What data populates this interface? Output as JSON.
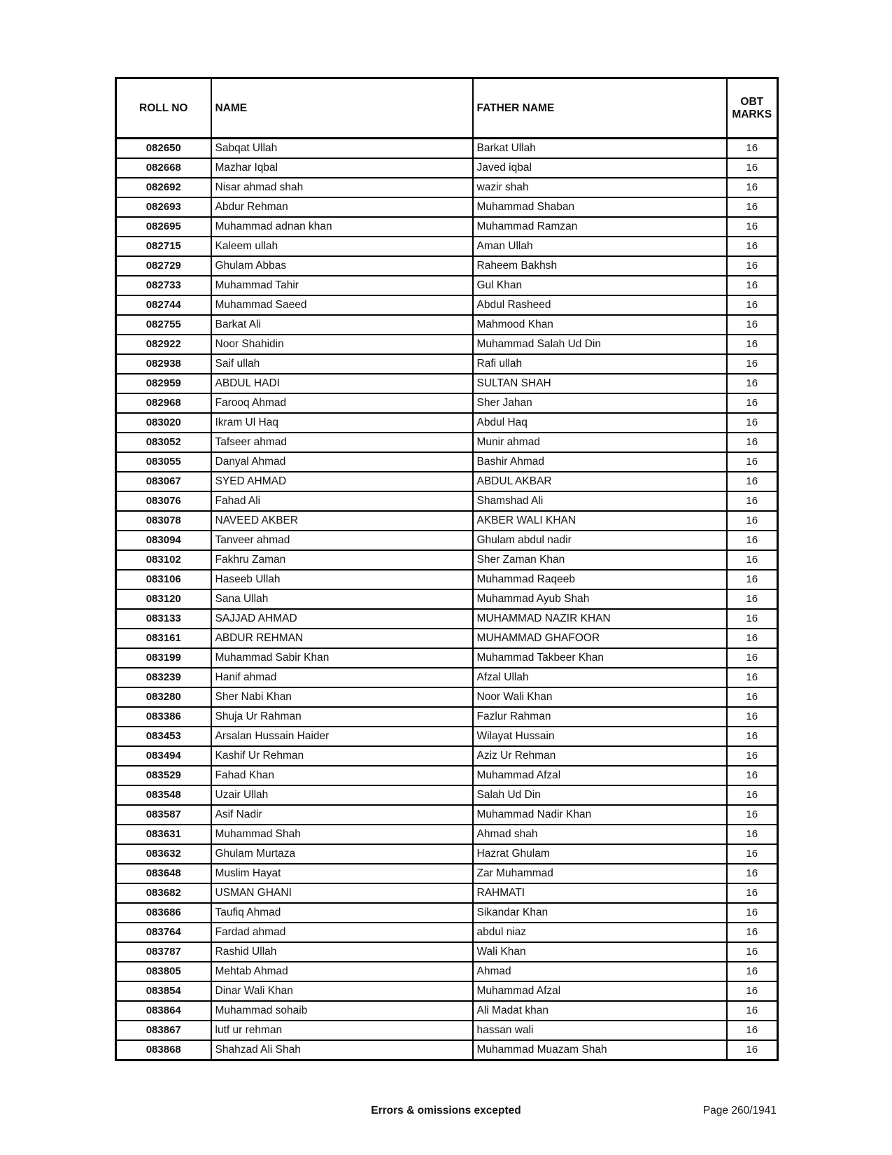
{
  "table": {
    "headers": {
      "roll": "ROLL NO",
      "name": "NAME",
      "father": "FATHER NAME",
      "marks": "OBT MARKS"
    },
    "rows": [
      {
        "roll": "082650",
        "name": "Sabqat Ullah",
        "father": "Barkat Ullah",
        "marks": "16"
      },
      {
        "roll": "082668",
        "name": "Mazhar Iqbal",
        "father": "Javed iqbal",
        "marks": "16"
      },
      {
        "roll": "082692",
        "name": "Nisar ahmad shah",
        "father": "wazir shah",
        "marks": "16"
      },
      {
        "roll": "082693",
        "name": "Abdur Rehman",
        "father": "Muhammad Shaban",
        "marks": "16"
      },
      {
        "roll": "082695",
        "name": "Muhammad adnan khan",
        "father": "Muhammad Ramzan",
        "marks": "16"
      },
      {
        "roll": "082715",
        "name": "Kaleem ullah",
        "father": "Aman Ullah",
        "marks": "16"
      },
      {
        "roll": "082729",
        "name": "Ghulam Abbas",
        "father": "Raheem Bakhsh",
        "marks": "16"
      },
      {
        "roll": "082733",
        "name": "Muhammad Tahir",
        "father": "Gul Khan",
        "marks": "16"
      },
      {
        "roll": "082744",
        "name": "Muhammad Saeed",
        "father": "Abdul Rasheed",
        "marks": "16"
      },
      {
        "roll": "082755",
        "name": "Barkat Ali",
        "father": "Mahmood Khan",
        "marks": "16"
      },
      {
        "roll": "082922",
        "name": "Noor Shahidin",
        "father": "Muhammad Salah Ud Din",
        "marks": "16"
      },
      {
        "roll": "082938",
        "name": "Saif ullah",
        "father": "Rafi ullah",
        "marks": "16"
      },
      {
        "roll": "082959",
        "name": "ABDUL HADI",
        "father": "SULTAN SHAH",
        "marks": "16"
      },
      {
        "roll": "082968",
        "name": "Farooq Ahmad",
        "father": "Sher Jahan",
        "marks": "16"
      },
      {
        "roll": "083020",
        "name": "Ikram Ul Haq",
        "father": "Abdul Haq",
        "marks": "16"
      },
      {
        "roll": "083052",
        "name": "Tafseer ahmad",
        "father": "Munir ahmad",
        "marks": "16"
      },
      {
        "roll": "083055",
        "name": "Danyal Ahmad",
        "father": "Bashir Ahmad",
        "marks": "16"
      },
      {
        "roll": "083067",
        "name": "SYED AHMAD",
        "father": "ABDUL AKBAR",
        "marks": "16"
      },
      {
        "roll": "083076",
        "name": "Fahad Ali",
        "father": "Shamshad Ali",
        "marks": "16"
      },
      {
        "roll": "083078",
        "name": "NAVEED AKBER",
        "father": "AKBER WALI KHAN",
        "marks": "16"
      },
      {
        "roll": "083094",
        "name": "Tanveer ahmad",
        "father": "Ghulam abdul nadir",
        "marks": "16"
      },
      {
        "roll": "083102",
        "name": "Fakhru Zaman",
        "father": "Sher Zaman Khan",
        "marks": "16"
      },
      {
        "roll": "083106",
        "name": "Haseeb Ullah",
        "father": "Muhammad Raqeeb",
        "marks": "16"
      },
      {
        "roll": "083120",
        "name": "Sana Ullah",
        "father": "Muhammad Ayub Shah",
        "marks": "16"
      },
      {
        "roll": "083133",
        "name": "SAJJAD AHMAD",
        "father": "MUHAMMAD NAZIR KHAN",
        "marks": "16"
      },
      {
        "roll": "083161",
        "name": "ABDUR REHMAN",
        "father": "MUHAMMAD GHAFOOR",
        "marks": "16"
      },
      {
        "roll": "083199",
        "name": "Muhammad Sabir Khan",
        "father": "Muhammad Takbeer Khan",
        "marks": "16"
      },
      {
        "roll": "083239",
        "name": "Hanif ahmad",
        "father": "Afzal Ullah",
        "marks": "16"
      },
      {
        "roll": "083280",
        "name": "Sher Nabi Khan",
        "father": "Noor Wali Khan",
        "marks": "16"
      },
      {
        "roll": "083386",
        "name": "Shuja Ur Rahman",
        "father": "Fazlur Rahman",
        "marks": "16"
      },
      {
        "roll": "083453",
        "name": "Arsalan Hussain Haider",
        "father": "Wilayat Hussain",
        "marks": "16"
      },
      {
        "roll": "083494",
        "name": "Kashif Ur Rehman",
        "father": "Aziz Ur Rehman",
        "marks": "16"
      },
      {
        "roll": "083529",
        "name": "Fahad Khan",
        "father": "Muhammad Afzal",
        "marks": "16"
      },
      {
        "roll": "083548",
        "name": "Uzair Ullah",
        "father": "Salah Ud Din",
        "marks": "16"
      },
      {
        "roll": "083587",
        "name": "Asif Nadir",
        "father": "Muhammad Nadir Khan",
        "marks": "16"
      },
      {
        "roll": "083631",
        "name": "Muhammad Shah",
        "father": "Ahmad shah",
        "marks": "16"
      },
      {
        "roll": "083632",
        "name": "Ghulam Murtaza",
        "father": "Hazrat Ghulam",
        "marks": "16"
      },
      {
        "roll": "083648",
        "name": "Muslim Hayat",
        "father": "Zar Muhammad",
        "marks": "16"
      },
      {
        "roll": "083682",
        "name": "USMAN GHANI",
        "father": "RAHMATI",
        "marks": "16"
      },
      {
        "roll": "083686",
        "name": "Taufiq Ahmad",
        "father": "Sikandar Khan",
        "marks": "16"
      },
      {
        "roll": "083764",
        "name": "Fardad ahmad",
        "father": "abdul niaz",
        "marks": "16"
      },
      {
        "roll": "083787",
        "name": "Rashid Ullah",
        "father": "Wali Khan",
        "marks": "16"
      },
      {
        "roll": "083805",
        "name": "Mehtab Ahmad",
        "father": "Ahmad",
        "marks": "16"
      },
      {
        "roll": "083854",
        "name": "Dinar Wali Khan",
        "father": "Muhammad Afzal",
        "marks": "16"
      },
      {
        "roll": "083864",
        "name": "Muhammad sohaib",
        "father": "Ali Madat khan",
        "marks": "16"
      },
      {
        "roll": "083867",
        "name": "lutf ur rehman",
        "father": "hassan wali",
        "marks": "16"
      },
      {
        "roll": "083868",
        "name": "Shahzad Ali Shah",
        "father": "Muhammad Muazam Shah",
        "marks": "16"
      }
    ]
  },
  "footer": {
    "note": "Errors & omissions excepted",
    "page": "Page 260/1941"
  }
}
